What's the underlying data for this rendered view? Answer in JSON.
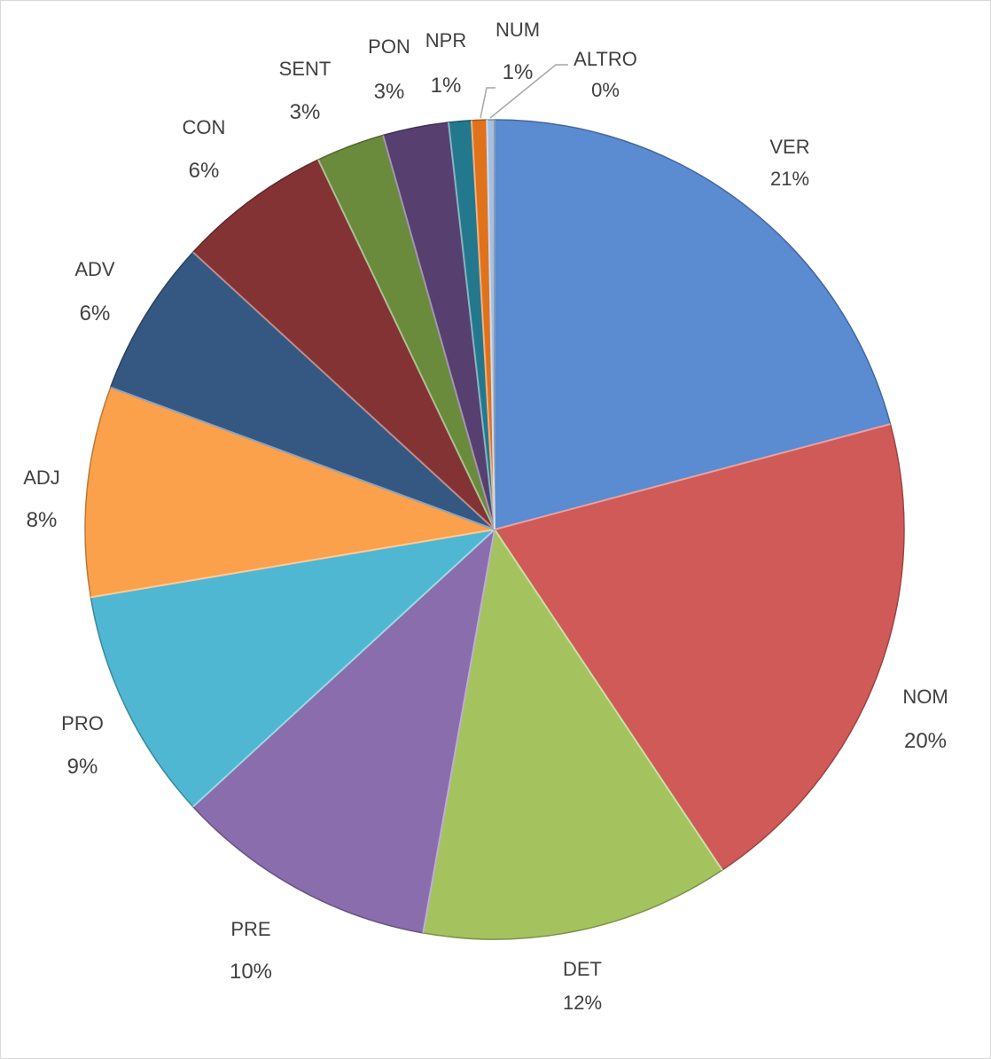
{
  "chart_data": {
    "type": "pie",
    "title": "",
    "start_angle_deg": 0,
    "direction": "clockwise",
    "legend": "none",
    "slices": [
      {
        "label": "VER",
        "value": 20.9,
        "pct_text": "21%",
        "color": "#5b8bd0"
      },
      {
        "label": "NOM",
        "value": 19.8,
        "pct_text": "20%",
        "color": "#d05a58"
      },
      {
        "label": "DET",
        "value": 12.2,
        "pct_text": "12%",
        "color": "#a4c35f"
      },
      {
        "label": "PRE",
        "value": 10.4,
        "pct_text": "10%",
        "color": "#8a6dad"
      },
      {
        "label": "PRO",
        "value": 9.2,
        "pct_text": "9%",
        "color": "#4fb7d1"
      },
      {
        "label": "ADJ",
        "value": 8.3,
        "pct_text": "8%",
        "color": "#fba04b"
      },
      {
        "label": "ADV",
        "value": 6.2,
        "pct_text": "6%",
        "color": "#355882"
      },
      {
        "label": "CON",
        "value": 6.1,
        "pct_text": "6%",
        "color": "#843334"
      },
      {
        "label": "SENT",
        "value": 2.7,
        "pct_text": "3%",
        "color": "#6a8a3c"
      },
      {
        "label": "PON",
        "value": 2.6,
        "pct_text": "3%",
        "color": "#573f70"
      },
      {
        "label": "NPR",
        "value": 0.9,
        "pct_text": "1%",
        "color": "#23788d"
      },
      {
        "label": "NUM",
        "value": 0.6,
        "pct_text": "1%",
        "color": "#e0721b"
      },
      {
        "label": "ALTRO",
        "value": 0.3,
        "pct_text": "0%",
        "color": "#a6bfe0"
      }
    ]
  }
}
